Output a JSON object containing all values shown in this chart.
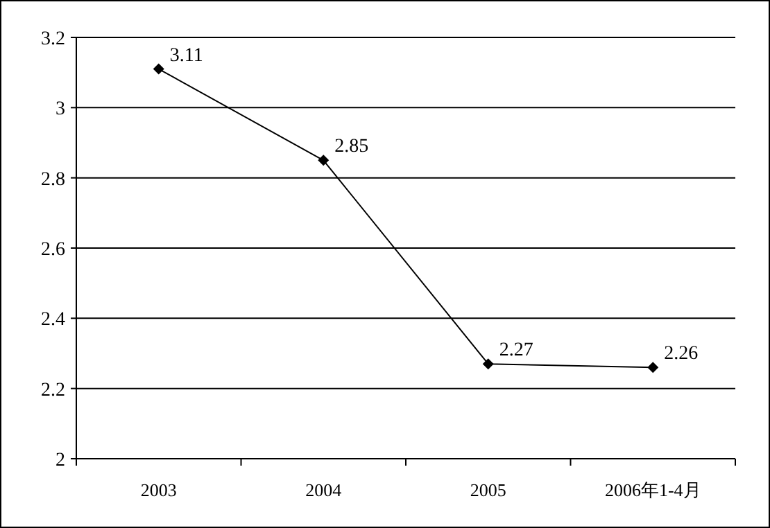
{
  "chart_data": {
    "type": "line",
    "categories": [
      "2003",
      "2004",
      "2005",
      "2006年1-4月"
    ],
    "series": [
      {
        "color": "#000000",
        "values": [
          3.11,
          2.85,
          2.27,
          2.26
        ]
      }
    ],
    "ylim": [
      2,
      3.2
    ],
    "yticks": [
      2,
      2.2,
      2.4,
      2.6,
      2.8,
      3,
      3.2
    ],
    "grid": "y",
    "marker": "diamond",
    "line_style": "solid",
    "data_labels": true
  }
}
